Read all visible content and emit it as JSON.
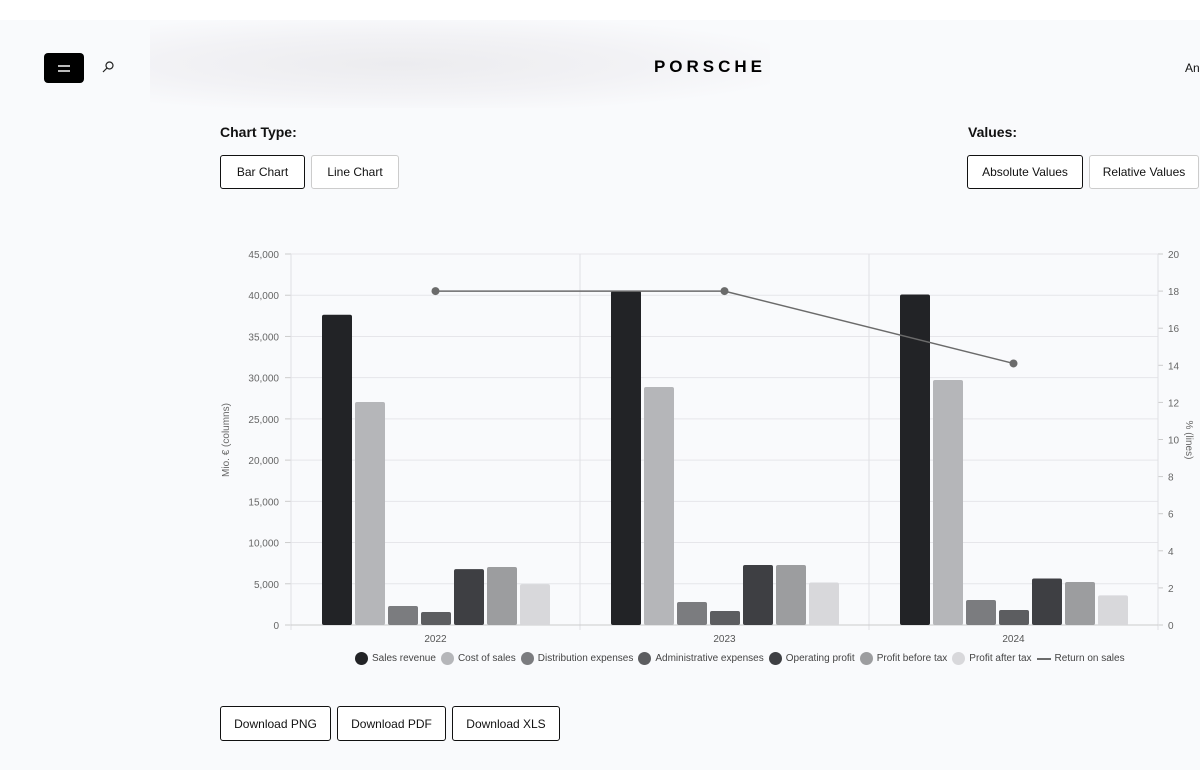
{
  "header": {
    "logo": "PORSCHE",
    "corner_text": "Ann"
  },
  "controls": {
    "chart_type_label": "Chart Type:",
    "chart_types": [
      "Bar Chart",
      "Line Chart"
    ],
    "values_label": "Values:",
    "value_modes": [
      "Absolute Values",
      "Relative Values"
    ]
  },
  "downloads": [
    "Download PNG",
    "Download PDF",
    "Download XLS"
  ],
  "colors": {
    "series": [
      "#222326",
      "#b5b6b9",
      "#7b7c7f",
      "#5c5d60",
      "#3e3f43",
      "#9c9d9f",
      "#d8d8db"
    ],
    "line": "#6b6b6b"
  },
  "chart_data": {
    "type": "bar",
    "categories": [
      "2022",
      "2023",
      "2024"
    ],
    "ylabel": "Mio. € (columns)",
    "y2label": "% (lines)",
    "ylim": [
      0,
      45000
    ],
    "y2lim": [
      0,
      20
    ],
    "yticks": [
      "0",
      "5,000",
      "10,000",
      "15,000",
      "20,000",
      "25,000",
      "30,000",
      "35,000",
      "40,000",
      "45,000"
    ],
    "y2ticks": [
      "0",
      "2",
      "4",
      "6",
      "8",
      "10",
      "12",
      "14",
      "16",
      "18",
      "20"
    ],
    "series": [
      {
        "name": "Sales revenue",
        "values": [
          37630,
          40530,
          40083
        ]
      },
      {
        "name": "Cost of sales",
        "values": [
          27050,
          28870,
          29720
        ]
      },
      {
        "name": "Distribution expenses",
        "values": [
          2300,
          2790,
          3030
        ]
      },
      {
        "name": "Administrative expenses",
        "values": [
          1580,
          1700,
          1820
        ]
      },
      {
        "name": "Operating profit",
        "values": [
          6770,
          7282,
          5637
        ]
      },
      {
        "name": "Profit before tax",
        "values": [
          7040,
          7280,
          5220
        ]
      },
      {
        "name": "Profit after tax",
        "values": [
          4956,
          5156,
          3595
        ]
      }
    ],
    "line_series": {
      "name": "Return on sales",
      "values": [
        18.0,
        18.0,
        14.1
      ]
    },
    "legend_position": "bottom"
  }
}
